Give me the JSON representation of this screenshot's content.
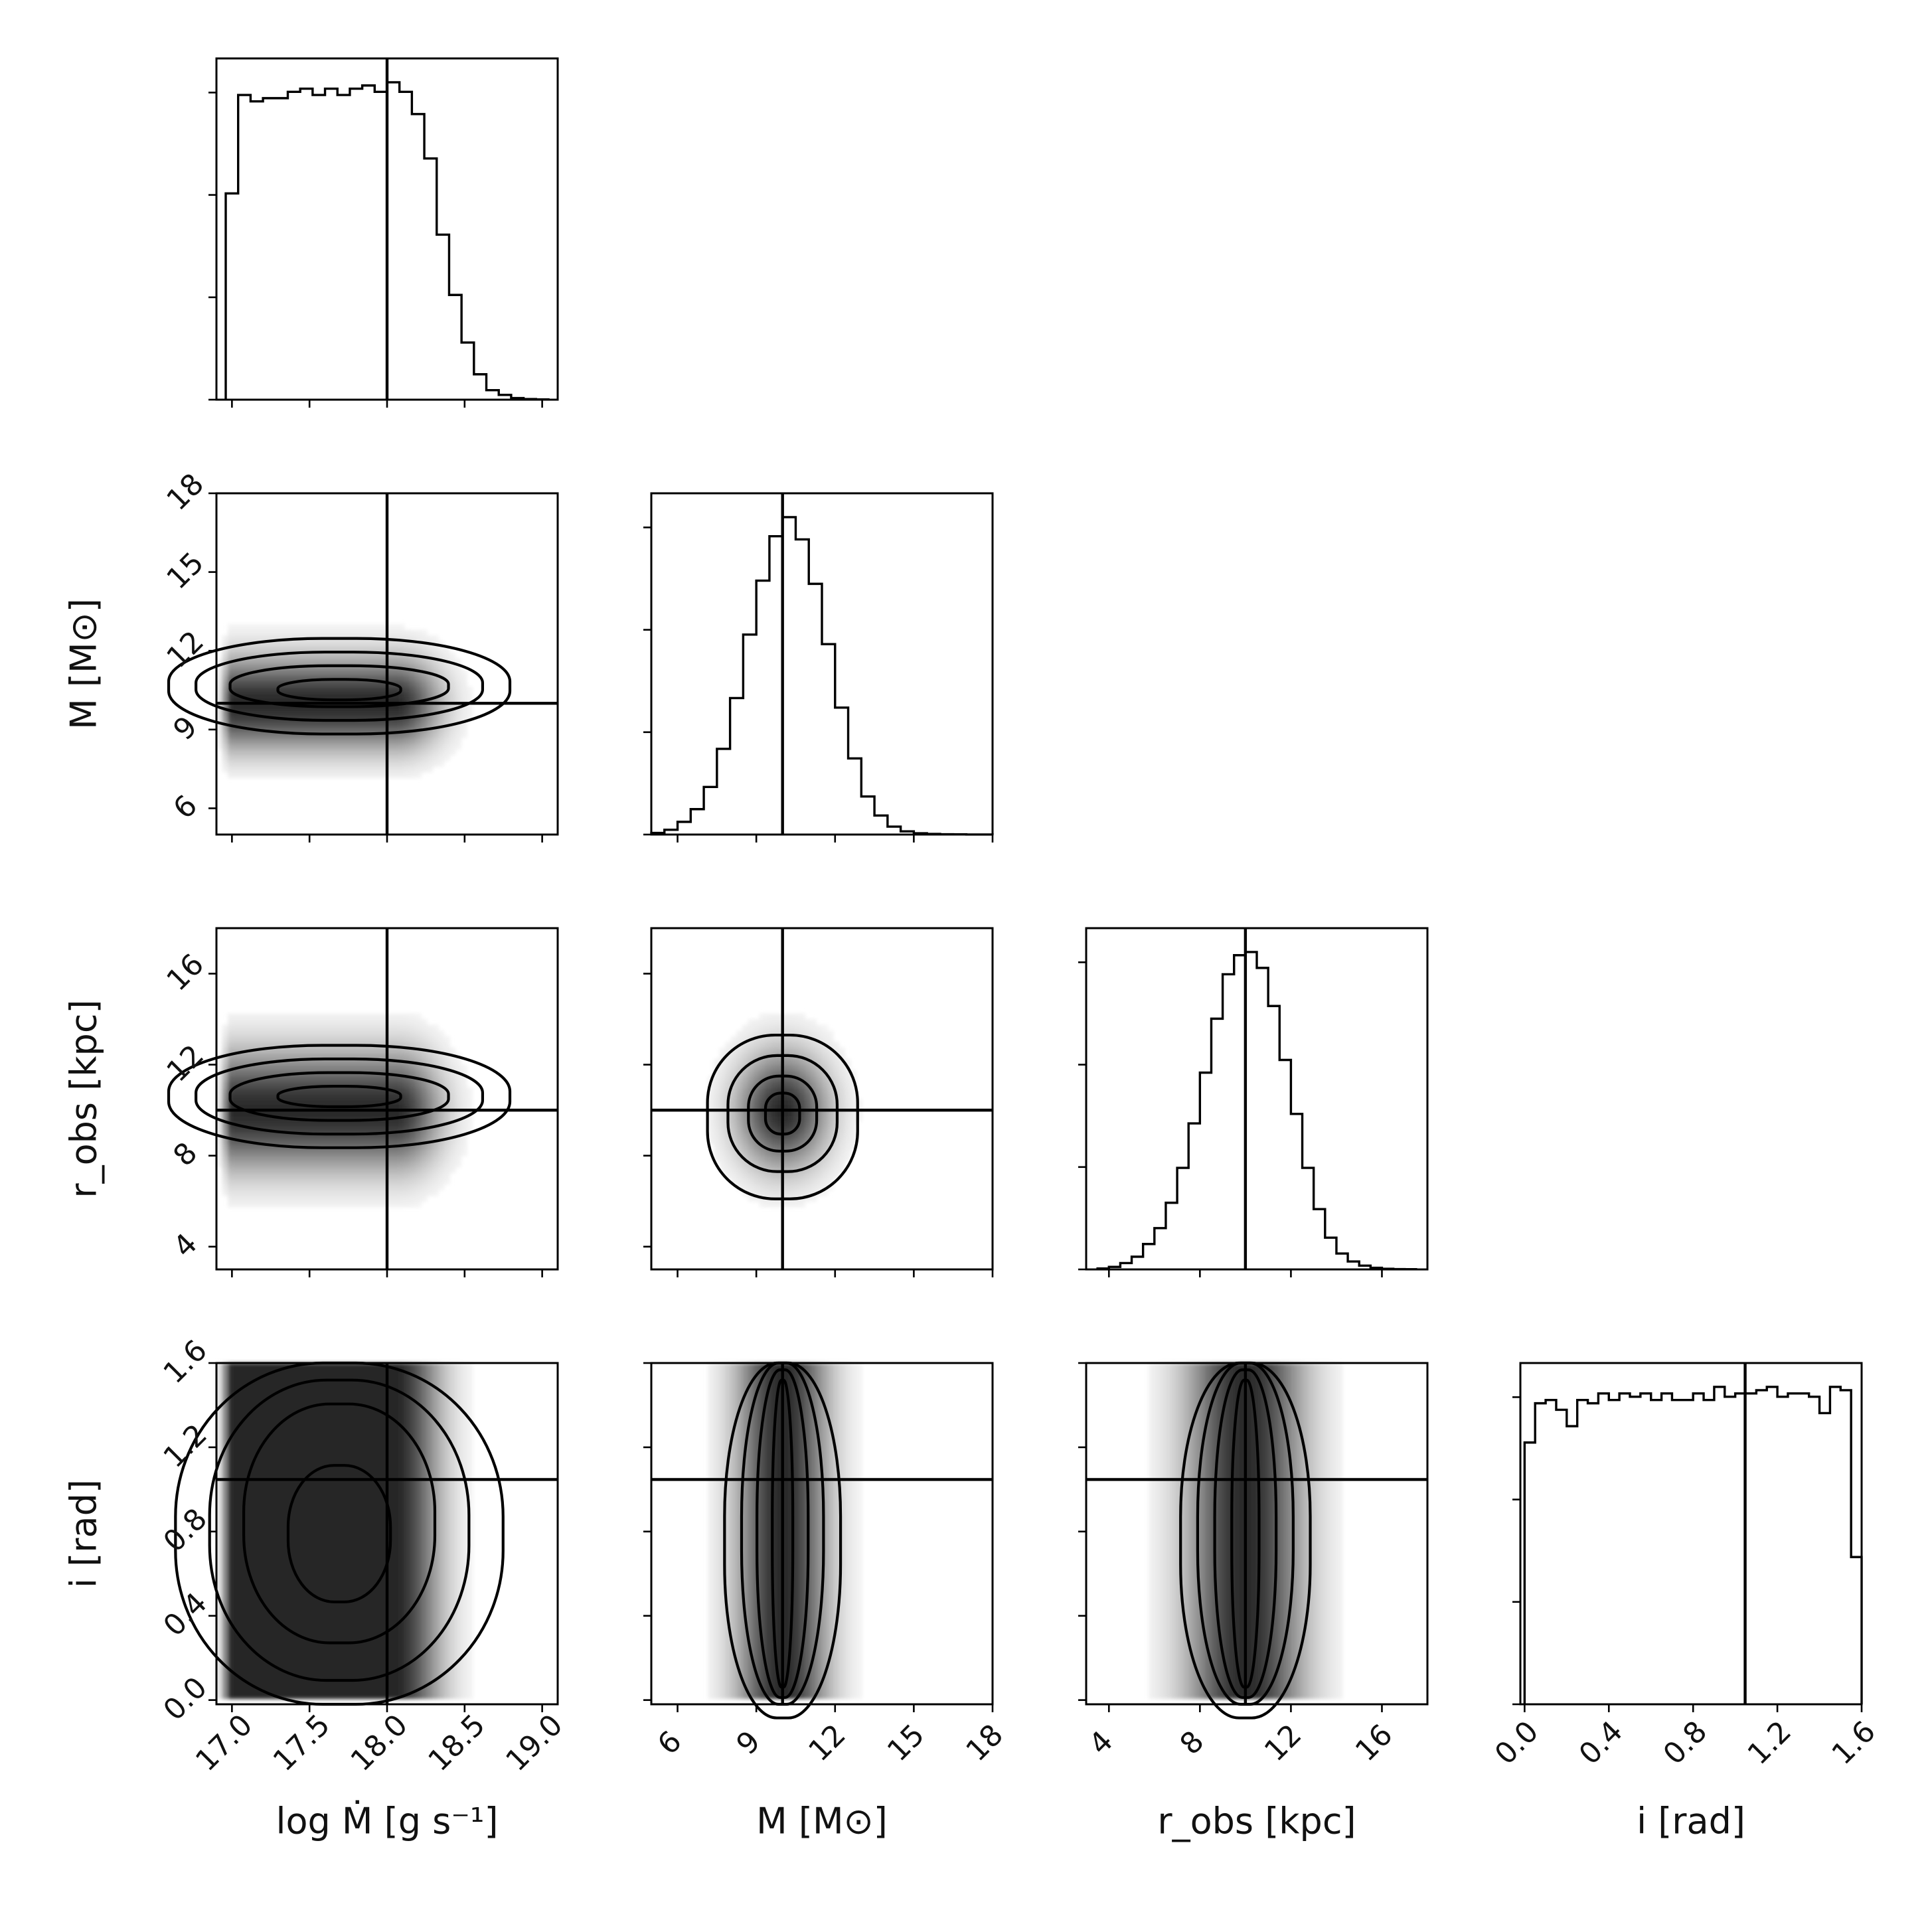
{
  "chart_data": {
    "type": "corner",
    "parameters": [
      {
        "id": "mdot",
        "label": "log Ṁ [g s⁻¹]",
        "range": [
          16.9,
          19.1
        ],
        "ticks": [
          17.0,
          17.5,
          18.0,
          18.5,
          19.0
        ],
        "tick_labels": [
          "17.0",
          "17.5",
          "18.0",
          "18.5",
          "19.0"
        ],
        "truth": 18.0
      },
      {
        "id": "mass",
        "label": "M [M⊙]",
        "range": [
          5.0,
          18.0
        ],
        "ticks": [
          6,
          9,
          12,
          15,
          18
        ],
        "tick_labels": [
          "6",
          "9",
          "12",
          "15",
          "18"
        ],
        "truth": 10.0
      },
      {
        "id": "robs",
        "label": "r_obs [kpc]",
        "range": [
          3.0,
          18.0
        ],
        "ticks": [
          4,
          8,
          12,
          16
        ],
        "tick_labels": [
          "4",
          "8",
          "12",
          "16"
        ],
        "truth": 10.0
      },
      {
        "id": "incl",
        "label": "i [rad]",
        "range": [
          -0.02,
          1.6
        ],
        "ticks": [
          0.0,
          0.4,
          0.8,
          1.2,
          1.6
        ],
        "tick_labels": [
          "0.0",
          "0.4",
          "0.8",
          "1.2",
          "1.6"
        ],
        "truth": 1.047
      }
    ],
    "histograms": [
      {
        "param": "mdot",
        "bin_edges": [
          16.96,
          17.04,
          17.12,
          17.2,
          17.28,
          17.36,
          17.44,
          17.52,
          17.6,
          17.68,
          17.76,
          17.84,
          17.92,
          18.0,
          18.08,
          18.16,
          18.24,
          18.32,
          18.4,
          18.48,
          18.56,
          18.64,
          18.72,
          18.8,
          18.88,
          18.96,
          19.04
        ],
        "counts": [
          0.65,
          0.96,
          0.94,
          0.95,
          0.95,
          0.97,
          0.98,
          0.96,
          0.98,
          0.96,
          0.98,
          0.99,
          0.97,
          1.0,
          0.97,
          0.9,
          0.76,
          0.52,
          0.33,
          0.18,
          0.08,
          0.03,
          0.015,
          0.005,
          0.002,
          0.001
        ]
      },
      {
        "param": "mass",
        "bin_edges": [
          5.0,
          5.5,
          6.0,
          6.5,
          7.0,
          7.5,
          8.0,
          8.5,
          9.0,
          9.5,
          10.0,
          10.5,
          11.0,
          11.5,
          12.0,
          12.5,
          13.0,
          13.5,
          14.0,
          14.5,
          15.0,
          15.5,
          16.0,
          16.5,
          17.0,
          17.5,
          18.0
        ],
        "counts": [
          0.005,
          0.015,
          0.04,
          0.08,
          0.15,
          0.27,
          0.43,
          0.63,
          0.8,
          0.94,
          1.0,
          0.93,
          0.79,
          0.6,
          0.4,
          0.24,
          0.12,
          0.06,
          0.025,
          0.01,
          0.004,
          0.002,
          0.001,
          0.0005,
          0.0002,
          0.0001
        ]
      },
      {
        "param": "robs",
        "bin_edges": [
          3.5,
          4.0,
          4.5,
          5.0,
          5.5,
          6.0,
          6.5,
          7.0,
          7.5,
          8.0,
          8.5,
          9.0,
          9.5,
          10.0,
          10.5,
          11.0,
          11.5,
          12.0,
          12.5,
          13.0,
          13.5,
          14.0,
          14.5,
          15.0,
          15.5,
          16.0,
          16.5,
          17.0,
          17.5
        ],
        "counts": [
          0.003,
          0.008,
          0.02,
          0.04,
          0.08,
          0.13,
          0.21,
          0.32,
          0.46,
          0.62,
          0.79,
          0.93,
          0.99,
          1.0,
          0.95,
          0.83,
          0.66,
          0.49,
          0.32,
          0.19,
          0.1,
          0.05,
          0.025,
          0.012,
          0.005,
          0.002,
          0.001,
          0.0005
        ]
      },
      {
        "param": "incl",
        "bin_edges": [
          0.0,
          0.05,
          0.1,
          0.15,
          0.2,
          0.25,
          0.3,
          0.35,
          0.4,
          0.45,
          0.5,
          0.55,
          0.6,
          0.65,
          0.7,
          0.75,
          0.8,
          0.85,
          0.9,
          0.95,
          1.0,
          1.05,
          1.1,
          1.15,
          1.2,
          1.25,
          1.3,
          1.35,
          1.4,
          1.45,
          1.5,
          1.55,
          1.6
        ],
        "counts": [
          0.8,
          0.92,
          0.93,
          0.9,
          0.85,
          0.93,
          0.92,
          0.95,
          0.93,
          0.95,
          0.94,
          0.95,
          0.93,
          0.95,
          0.93,
          0.93,
          0.95,
          0.93,
          0.97,
          0.94,
          0.95,
          0.95,
          0.96,
          0.97,
          0.94,
          0.95,
          0.95,
          0.94,
          0.89,
          0.97,
          0.96,
          0.45
        ]
      }
    ],
    "contour_levels": [
      0.5,
      1.0,
      1.5,
      2.0
    ],
    "truth_lines": true,
    "grid": false
  }
}
